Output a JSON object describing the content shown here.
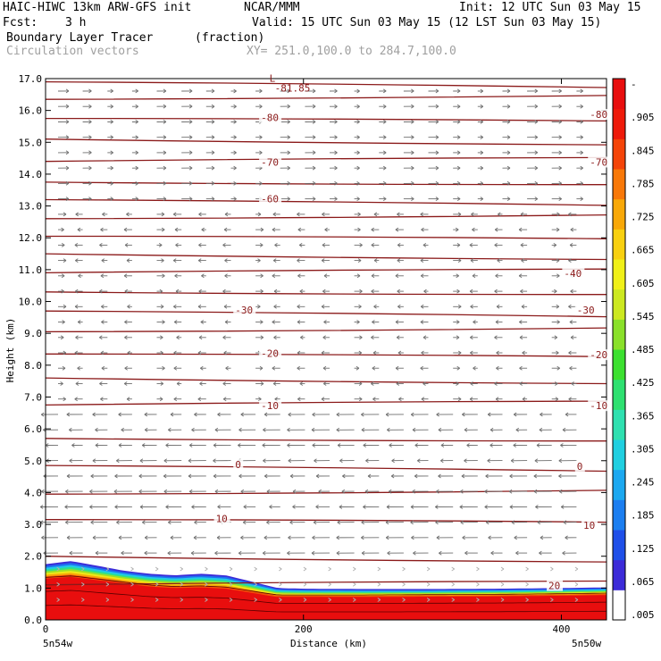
{
  "header": {
    "model": "HAIC-HIWC 13km ARW-GFS init",
    "org": "NCAR/MMM",
    "init": "Init: 12 UTC Sun 03 May 15",
    "fcst_label": "Fcst:",
    "fcst_value": "3 h",
    "valid": "Valid: 15 UTC Sun 03 May 15 (12 LST Sun 03 May 15)",
    "field": "Boundary Layer Tracer",
    "units": "(fraction)",
    "overlay": "Circulation vectors",
    "xy_range": "XY= 251.0,100.0 to 284.7,100.0"
  },
  "chart_data": {
    "type": "heatmap",
    "xlabel": "Distance (km)",
    "ylabel": "Height (km)",
    "xlim": [
      0,
      435
    ],
    "ylim": [
      0.0,
      17.0
    ],
    "xticks": [
      0,
      200,
      400
    ],
    "xtick_labels": [
      "0",
      "200",
      "400"
    ],
    "yticks": [
      0.0,
      1.0,
      2.0,
      3.0,
      4.0,
      5.0,
      6.0,
      7.0,
      8.0,
      9.0,
      10.0,
      11.0,
      12.0,
      13.0,
      14.0,
      15.0,
      16.0,
      17.0
    ],
    "ytick_labels": [
      "0.0",
      "1.0",
      "2.0",
      "3.0",
      "4.0",
      "5.0",
      "6.0",
      "7.0",
      "8.0",
      "9.0",
      "10.0",
      "11.0",
      "12.0",
      "13.0",
      "14.0",
      "15.0",
      "16.0",
      "17.0"
    ],
    "left_endpoint": "5n54w",
    "right_endpoint": "5n50w",
    "colorbar": {
      "labels": [
        ".005",
        ".065",
        ".125",
        ".185",
        ".245",
        ".305",
        ".365",
        ".425",
        ".485",
        ".545",
        ".605",
        ".665",
        ".725",
        ".785",
        ".845",
        ".905",
        "-"
      ],
      "colors": [
        "#ffffff",
        "#3c2bd8",
        "#1f4fe8",
        "#1c7ef0",
        "#1ca8f0",
        "#20cfe0",
        "#2fe0b0",
        "#2ee070",
        "#3ce030",
        "#8ae02a",
        "#cce820",
        "#f0f018",
        "#f8d010",
        "#f8a808",
        "#f87808",
        "#f44408",
        "#ee1a0a",
        "#e80e0e"
      ]
    },
    "tracer_layer": {
      "x": [
        0,
        20,
        40,
        60,
        80,
        100,
        120,
        140,
        160,
        170,
        180,
        200,
        250,
        300,
        350,
        400,
        435
      ],
      "top_km": [
        1.75,
        1.85,
        1.7,
        1.55,
        1.45,
        1.4,
        1.45,
        1.4,
        1.2,
        1.1,
        1.0,
        0.98,
        0.97,
        0.97,
        0.98,
        1.0,
        1.02
      ],
      "red_top_km": [
        1.3,
        1.35,
        1.25,
        1.15,
        1.05,
        1.0,
        1.02,
        0.98,
        0.85,
        0.78,
        0.72,
        0.72,
        0.72,
        0.73,
        0.74,
        0.76,
        0.78
      ]
    },
    "temperature_contours_degC": [
      {
        "value": -81.85,
        "label": "L",
        "x": 175,
        "y_km": 16.85
      },
      {
        "value": -80,
        "label": "-80",
        "x": 167,
        "y_km": 15.75
      },
      {
        "value": -80,
        "label": "-80",
        "x": 422,
        "y_km": 15.85
      },
      {
        "value": -70,
        "label": "-70",
        "x": 167,
        "y_km": 14.35
      },
      {
        "value": -70,
        "label": "-70",
        "x": 422,
        "y_km": 14.35
      },
      {
        "value": -60,
        "label": "-60",
        "x": 167,
        "y_km": 13.2
      },
      {
        "value": -40,
        "label": "-40",
        "x": 402,
        "y_km": 10.85
      },
      {
        "value": -30,
        "label": "-30",
        "x": 147,
        "y_km": 9.7
      },
      {
        "value": -30,
        "label": "-30",
        "x": 412,
        "y_km": 9.7
      },
      {
        "value": -20,
        "label": "-20",
        "x": 167,
        "y_km": 8.35
      },
      {
        "value": -20,
        "label": "-20",
        "x": 422,
        "y_km": 8.3
      },
      {
        "value": -10,
        "label": "-10",
        "x": 167,
        "y_km": 6.7
      },
      {
        "value": -10,
        "label": "-10",
        "x": 422,
        "y_km": 6.7
      },
      {
        "value": 0,
        "label": "0",
        "x": 147,
        "y_km": 4.85
      },
      {
        "value": 0,
        "label": "0",
        "x": 412,
        "y_km": 4.8
      },
      {
        "value": 10,
        "label": "10",
        "x": 132,
        "y_km": 3.15
      },
      {
        "value": 10,
        "label": "10",
        "x": 417,
        "y_km": 2.95
      },
      {
        "value": 20,
        "label": "20",
        "x": 390,
        "y_km": 1.05
      }
    ],
    "isotherm_levels_km": [
      16.9,
      16.35,
      15.75,
      15.1,
      14.4,
      13.75,
      13.2,
      12.6,
      12.05,
      11.5,
      10.9,
      10.3,
      9.7,
      9.05,
      8.35,
      7.6,
      6.75,
      5.7,
      4.85,
      3.95,
      3.15,
      2.0,
      1.1
    ]
  }
}
